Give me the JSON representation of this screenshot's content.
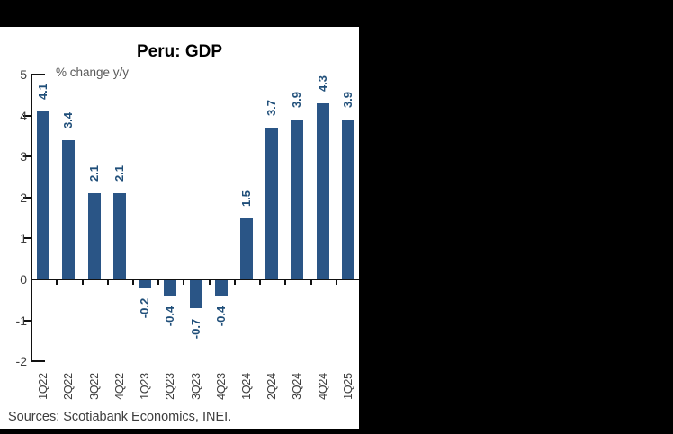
{
  "frame": {
    "background_color": "#000000",
    "panel_color": "#ffffff"
  },
  "chart_data": {
    "type": "bar",
    "title": "Peru: GDP",
    "annotation": "% change y/y",
    "categories": [
      "1Q22",
      "2Q22",
      "3Q22",
      "4Q22",
      "1Q23",
      "2Q23",
      "3Q23",
      "4Q23",
      "1Q24",
      "2Q24",
      "3Q24",
      "4Q24",
      "1Q25"
    ],
    "values": [
      4.1,
      3.4,
      2.1,
      2.1,
      -0.2,
      -0.4,
      -0.7,
      -0.4,
      1.5,
      3.7,
      3.9,
      4.3,
      3.9
    ],
    "xlabel": "",
    "ylabel": "",
    "ylim": [
      -2,
      5
    ],
    "yticks": [
      5,
      4,
      3,
      2,
      1,
      0,
      -1,
      -2
    ],
    "grid": false,
    "legend": "none",
    "bar_color": "#2a5586",
    "value_label_color": "#1f4e79",
    "axis_color": "#111111",
    "tick_label_color": "#3d3d3d",
    "annotation_color": "#595959",
    "source_color": "#3d3d3d",
    "source": "Sources: Scotiabank Economics, INEI."
  }
}
